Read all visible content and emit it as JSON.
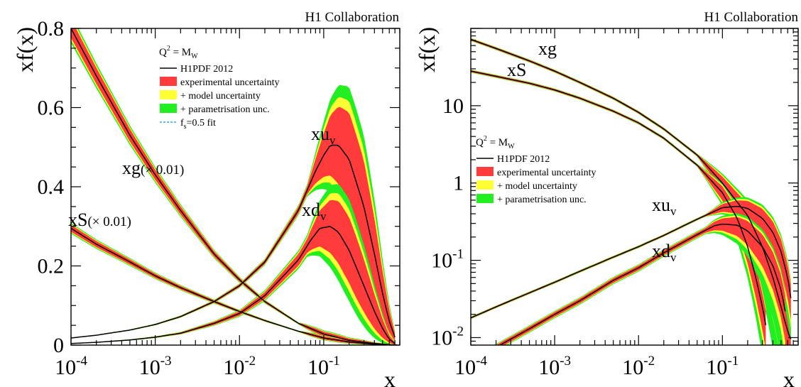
{
  "chart_data": [
    {
      "type": "line",
      "panel": "left",
      "header": "H1 Collaboration",
      "ylabel": "xf(x)",
      "xlabel": "x",
      "xscale": "log",
      "yscale": "linear",
      "xlim": [
        0.0001,
        0.8
      ],
      "ylim": [
        0,
        0.8
      ],
      "x_ticks": [
        {
          "value": 0.0001,
          "base": "10",
          "exp": "-4"
        },
        {
          "value": 0.001,
          "base": "10",
          "exp": "-3"
        },
        {
          "value": 0.01,
          "base": "10",
          "exp": "-2"
        },
        {
          "value": 0.1,
          "base": "10",
          "exp": "-1"
        }
      ],
      "y_ticks": [
        {
          "value": 0,
          "label": "0"
        },
        {
          "value": 0.2,
          "label": "0.2"
        },
        {
          "value": 0.4,
          "label": "0.4"
        },
        {
          "value": 0.6,
          "label": "0.6"
        },
        {
          "value": 0.8,
          "label": "0.8"
        }
      ],
      "legend": {
        "placement": "top-center",
        "q2": {
          "pre": "Q",
          "sup": "2",
          "mid": " = M",
          "sub": "W"
        },
        "entries": [
          {
            "kind": "line",
            "color": "#000000",
            "label": "H1PDF 2012"
          },
          {
            "kind": "box",
            "color": "#ff3b3b",
            "label": "experimental uncertainty"
          },
          {
            "kind": "box",
            "color": "#ffff33",
            "label": "+ model uncertainty"
          },
          {
            "kind": "box",
            "color": "#22ee22",
            "label": "+ parametrisation unc."
          },
          {
            "kind": "dash",
            "color": "#33aadd",
            "label_pre": "f",
            "label_sub": "s",
            "label_post": "=0.5 fit"
          }
        ]
      },
      "series": [
        {
          "label": "xg",
          "scale_note": "(× 0.01)",
          "x": [
            0.0001,
            0.0002,
            0.0005,
            0.001,
            0.002,
            0.005,
            0.01,
            0.02,
            0.05,
            0.1,
            0.2,
            0.4,
            0.6,
            0.8
          ],
          "y": [
            0.8,
            0.68,
            0.53,
            0.43,
            0.34,
            0.23,
            0.165,
            0.11,
            0.055,
            0.028,
            0.012,
            0.004,
            0.0012,
            0.0003
          ]
        },
        {
          "label": "xS",
          "scale_note": "(× 0.01)",
          "x": [
            0.0001,
            0.0002,
            0.0005,
            0.001,
            0.002,
            0.005,
            0.01,
            0.02,
            0.05,
            0.1,
            0.2,
            0.4,
            0.6,
            0.8
          ],
          "y": [
            0.295,
            0.255,
            0.21,
            0.175,
            0.145,
            0.11,
            0.085,
            0.062,
            0.035,
            0.018,
            0.008,
            0.002,
            0.0006,
            0.0001
          ]
        },
        {
          "label": "xu",
          "label_sub": "v",
          "x": [
            0.0001,
            0.0002,
            0.0005,
            0.001,
            0.002,
            0.005,
            0.01,
            0.02,
            0.05,
            0.08,
            0.1,
            0.12,
            0.15,
            0.2,
            0.3,
            0.4,
            0.5,
            0.6,
            0.7,
            0.75
          ],
          "y": [
            0.018,
            0.025,
            0.038,
            0.052,
            0.072,
            0.11,
            0.15,
            0.21,
            0.34,
            0.44,
            0.48,
            0.505,
            0.505,
            0.47,
            0.35,
            0.23,
            0.13,
            0.06,
            0.02,
            0.005
          ]
        },
        {
          "label": "xd",
          "label_sub": "v",
          "x": [
            0.0001,
            0.0002,
            0.0005,
            0.001,
            0.002,
            0.005,
            0.01,
            0.02,
            0.05,
            0.07,
            0.09,
            0.12,
            0.15,
            0.2,
            0.3,
            0.4,
            0.5,
            0.6,
            0.7,
            0.75
          ],
          "y": [
            0.004,
            0.007,
            0.013,
            0.02,
            0.03,
            0.055,
            0.08,
            0.125,
            0.215,
            0.265,
            0.295,
            0.3,
            0.285,
            0.24,
            0.15,
            0.085,
            0.042,
            0.015,
            0.004,
            0.001
          ]
        }
      ]
    },
    {
      "type": "line",
      "panel": "right",
      "header": "H1 Collaboration",
      "ylabel": "xf(x)",
      "xlabel": "x",
      "xscale": "log",
      "yscale": "log",
      "xlim": [
        0.0001,
        0.8
      ],
      "ylim": [
        0.008,
        100
      ],
      "x_ticks": [
        {
          "value": 0.0001,
          "base": "10",
          "exp": "-4"
        },
        {
          "value": 0.001,
          "base": "10",
          "exp": "-3"
        },
        {
          "value": 0.01,
          "base": "10",
          "exp": "-2"
        },
        {
          "value": 0.1,
          "base": "10",
          "exp": "-1"
        }
      ],
      "y_ticks": [
        {
          "value": 0.01,
          "base": "10",
          "exp": "-2"
        },
        {
          "value": 0.1,
          "base": "10",
          "exp": "-1"
        },
        {
          "value": 1,
          "label": "1"
        },
        {
          "value": 10,
          "label": "10"
        }
      ],
      "legend": {
        "placement": "center-left",
        "q2": {
          "pre": "Q",
          "sup": "2",
          "mid": " = M",
          "sub": "W"
        },
        "entries": [
          {
            "kind": "line",
            "color": "#000000",
            "label": "H1PDF 2012"
          },
          {
            "kind": "box",
            "color": "#ff3b3b",
            "label": "experimental uncertainty"
          },
          {
            "kind": "box",
            "color": "#ffff33",
            "label": "+ model uncertainty"
          },
          {
            "kind": "box",
            "color": "#22ee22",
            "label": "+ parametrisation unc."
          }
        ]
      },
      "series": [
        {
          "label": "xg",
          "x": [
            0.0001,
            0.0002,
            0.0005,
            0.001,
            0.002,
            0.005,
            0.01,
            0.02,
            0.05,
            0.1,
            0.2,
            0.3,
            0.4,
            0.5,
            0.6,
            0.7
          ],
          "y": [
            72,
            55,
            38,
            28,
            20,
            12.5,
            8.2,
            5.0,
            2.3,
            1.0,
            0.38,
            0.15,
            0.06,
            0.025,
            0.012,
            0.008
          ]
        },
        {
          "label": "xS",
          "x": [
            0.0001,
            0.0002,
            0.0005,
            0.001,
            0.002,
            0.005,
            0.01,
            0.02,
            0.05,
            0.1,
            0.15,
            0.2,
            0.25,
            0.3,
            0.35
          ],
          "y": [
            28,
            24,
            19.5,
            16,
            12.5,
            8.5,
            6.0,
            3.8,
            1.7,
            0.75,
            0.35,
            0.15,
            0.06,
            0.025,
            0.01
          ]
        },
        {
          "label": "xu",
          "label_sub": "v",
          "x": [
            0.0001,
            0.0002,
            0.0005,
            0.001,
            0.002,
            0.005,
            0.01,
            0.02,
            0.05,
            0.1,
            0.15,
            0.2,
            0.3,
            0.4,
            0.5,
            0.6,
            0.7
          ],
          "y": [
            0.018,
            0.025,
            0.038,
            0.052,
            0.072,
            0.11,
            0.15,
            0.21,
            0.34,
            0.48,
            0.5,
            0.47,
            0.35,
            0.23,
            0.13,
            0.06,
            0.02
          ]
        },
        {
          "label": "xd",
          "label_sub": "v",
          "x": [
            0.0001,
            0.0002,
            0.0005,
            0.001,
            0.002,
            0.005,
            0.01,
            0.02,
            0.05,
            0.08,
            0.1,
            0.15,
            0.2,
            0.3,
            0.4,
            0.5,
            0.6
          ],
          "y": [
            0.005,
            0.0075,
            0.013,
            0.02,
            0.03,
            0.055,
            0.08,
            0.125,
            0.215,
            0.28,
            0.295,
            0.285,
            0.24,
            0.15,
            0.085,
            0.042,
            0.015
          ]
        }
      ]
    }
  ]
}
